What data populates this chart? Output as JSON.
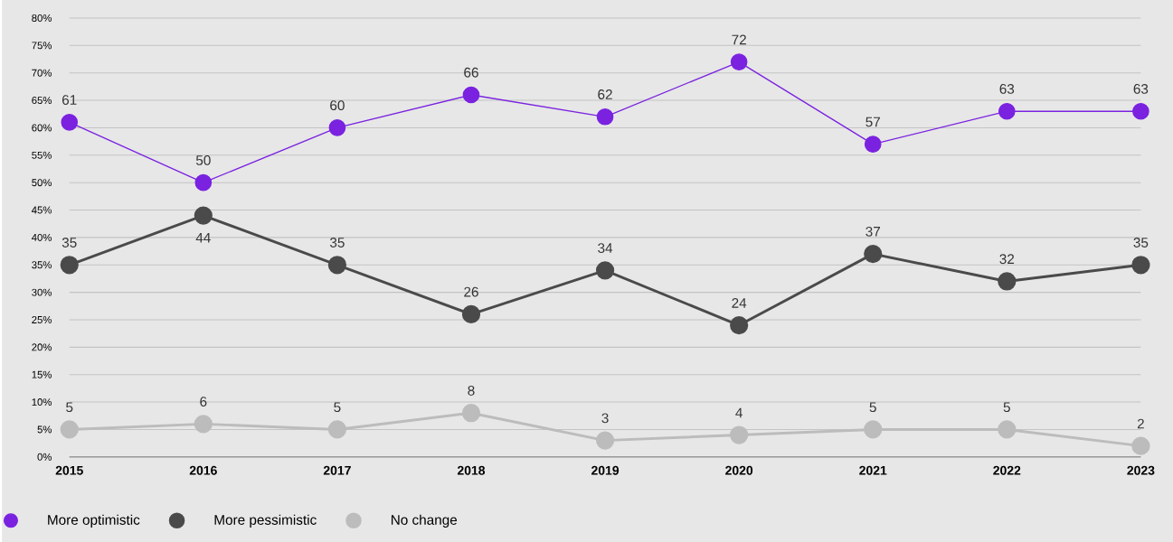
{
  "chart_data": {
    "type": "line",
    "categories": [
      "2015",
      "2016",
      "2017",
      "2018",
      "2019",
      "2020",
      "2021",
      "2022",
      "2023"
    ],
    "series": [
      {
        "name": "More optimistic",
        "color": "#7a22e0",
        "values": [
          61,
          50,
          60,
          66,
          62,
          72,
          57,
          63,
          63
        ]
      },
      {
        "name": "More pessimistic",
        "color": "#4a4a4a",
        "values": [
          35,
          44,
          35,
          26,
          34,
          24,
          37,
          32,
          35
        ]
      },
      {
        "name": "No change",
        "color": "#bcbcbc",
        "values": [
          5,
          6,
          5,
          8,
          3,
          4,
          5,
          5,
          2
        ]
      }
    ],
    "ylim": [
      0,
      80
    ],
    "yticks": [
      {
        "value": 0,
        "label": "0%"
      },
      {
        "value": 5,
        "label": "5%"
      },
      {
        "value": 10,
        "label": "10%"
      },
      {
        "value": 15,
        "label": "15%"
      },
      {
        "value": 20,
        "label": "20%"
      },
      {
        "value": 25,
        "label": "25%"
      },
      {
        "value": 30,
        "label": "30%"
      },
      {
        "value": 35,
        "label": "35%"
      },
      {
        "value": 40,
        "label": "40%"
      },
      {
        "value": 45,
        "label": "45%"
      },
      {
        "value": 50,
        "label": "50%"
      },
      {
        "value": 55,
        "label": "55%"
      },
      {
        "value": 60,
        "label": "60%"
      },
      {
        "value": 65,
        "label": "65%"
      },
      {
        "value": 70,
        "label": "70%"
      },
      {
        "value": 75,
        "label": "75%"
      },
      {
        "value": 80,
        "label": "80%"
      }
    ],
    "grid": "y",
    "legend": "bottom",
    "marker": "circle",
    "line_style": "solid",
    "data_labels": true
  }
}
